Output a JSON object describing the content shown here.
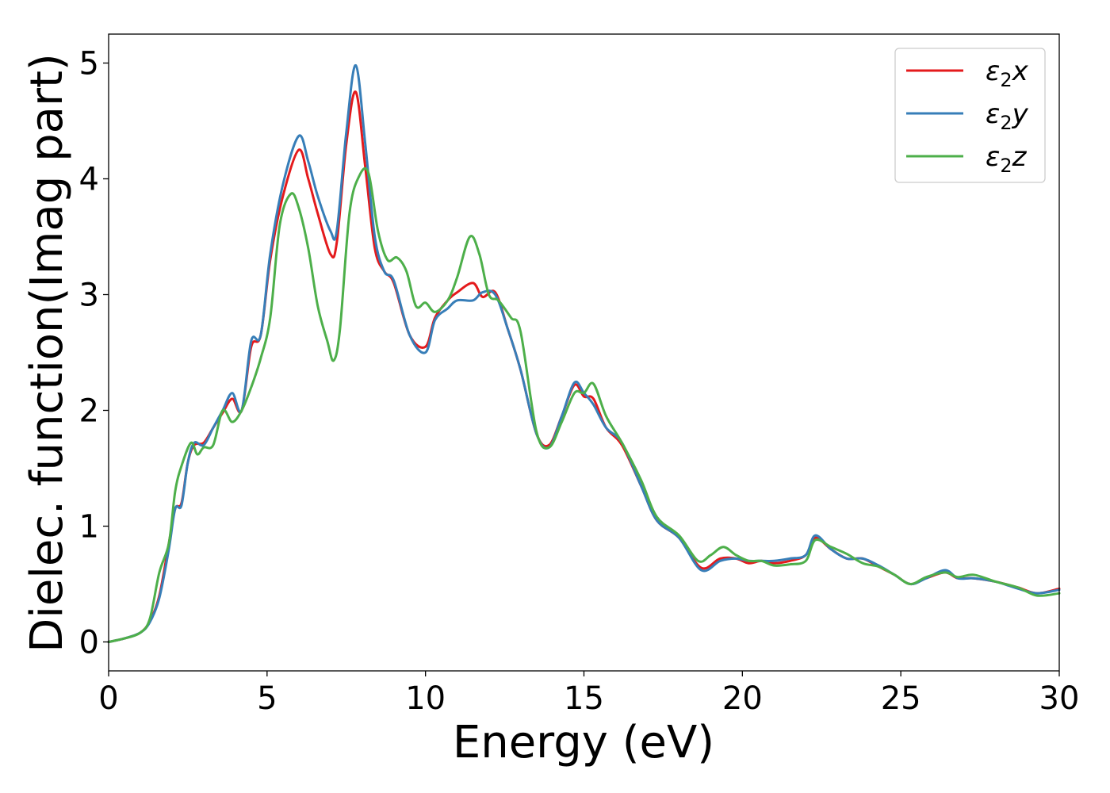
{
  "chart_data": {
    "type": "line",
    "xlabel": "Energy (eV)",
    "ylabel": "Dielec. function(Imag part)",
    "xlim": [
      0,
      30
    ],
    "ylim": [
      -0.25,
      5.25
    ],
    "xticks": [
      0,
      5,
      10,
      15,
      20,
      25,
      30
    ],
    "yticks": [
      0,
      1,
      2,
      3,
      4,
      5
    ],
    "grid": false,
    "legend": "top-right",
    "series": [
      {
        "name_base": "ε",
        "name_sub": "2",
        "name_suffix": "x",
        "color": "#e41a1c",
        "x": [
          0,
          0.5,
          1.0,
          1.3,
          1.6,
          1.9,
          2.1,
          2.3,
          2.5,
          2.7,
          3.0,
          3.3,
          3.6,
          3.9,
          4.2,
          4.5,
          4.8,
          5.1,
          5.5,
          6.0,
          6.3,
          6.6,
          7.0,
          7.2,
          7.5,
          7.8,
          8.1,
          8.4,
          8.7,
          9.0,
          9.5,
          10.0,
          10.3,
          10.7,
          11.0,
          11.5,
          11.8,
          12.2,
          12.6,
          13.0,
          13.5,
          13.9,
          14.3,
          14.7,
          15.0,
          15.3,
          15.7,
          16.2,
          16.8,
          17.3,
          18.0,
          18.7,
          19.3,
          19.8,
          20.2,
          20.6,
          21.0,
          21.5,
          22.0,
          22.3,
          22.8,
          23.3,
          23.8,
          24.3,
          24.8,
          25.3,
          25.8,
          26.4,
          26.8,
          27.3,
          28.0,
          28.7,
          29.3,
          30.0
        ],
        "y": [
          0.0,
          0.03,
          0.08,
          0.18,
          0.4,
          0.85,
          1.15,
          1.2,
          1.55,
          1.7,
          1.72,
          1.85,
          1.98,
          2.1,
          2.0,
          2.55,
          2.65,
          3.3,
          3.85,
          4.25,
          4.0,
          3.7,
          3.35,
          3.45,
          4.3,
          4.75,
          4.1,
          3.4,
          3.2,
          3.1,
          2.65,
          2.55,
          2.8,
          2.95,
          3.02,
          3.1,
          2.98,
          3.02,
          2.7,
          2.35,
          1.8,
          1.7,
          1.95,
          2.22,
          2.12,
          2.1,
          1.85,
          1.7,
          1.35,
          1.05,
          0.9,
          0.64,
          0.72,
          0.72,
          0.68,
          0.7,
          0.68,
          0.7,
          0.75,
          0.9,
          0.8,
          0.72,
          0.72,
          0.65,
          0.58,
          0.5,
          0.55,
          0.6,
          0.55,
          0.55,
          0.52,
          0.47,
          0.42,
          0.46
        ]
      },
      {
        "name_base": "ε",
        "name_sub": "2",
        "name_suffix": "y",
        "color": "#377eb8",
        "x": [
          0,
          0.5,
          1.0,
          1.3,
          1.6,
          1.9,
          2.1,
          2.3,
          2.5,
          2.7,
          3.0,
          3.3,
          3.6,
          3.9,
          4.2,
          4.5,
          4.8,
          5.1,
          5.5,
          6.0,
          6.3,
          6.6,
          7.0,
          7.2,
          7.5,
          7.8,
          8.1,
          8.4,
          8.7,
          9.0,
          9.5,
          10.0,
          10.3,
          10.7,
          11.0,
          11.5,
          11.8,
          12.2,
          12.6,
          13.0,
          13.5,
          13.9,
          14.3,
          14.7,
          15.0,
          15.3,
          15.7,
          16.2,
          16.8,
          17.3,
          18.0,
          18.7,
          19.3,
          19.8,
          20.2,
          20.6,
          21.0,
          21.5,
          22.0,
          22.3,
          22.8,
          23.3,
          23.8,
          24.3,
          24.8,
          25.3,
          25.8,
          26.4,
          26.8,
          27.3,
          28.0,
          28.7,
          29.3,
          30.0
        ],
        "y": [
          0.0,
          0.03,
          0.08,
          0.17,
          0.38,
          0.8,
          1.15,
          1.18,
          1.55,
          1.72,
          1.7,
          1.85,
          2.0,
          2.15,
          2.0,
          2.6,
          2.65,
          3.35,
          3.95,
          4.37,
          4.15,
          3.85,
          3.55,
          3.55,
          4.4,
          4.98,
          4.3,
          3.5,
          3.2,
          3.12,
          2.65,
          2.5,
          2.78,
          2.88,
          2.95,
          2.95,
          3.02,
          3.0,
          2.7,
          2.35,
          1.8,
          1.68,
          1.95,
          2.24,
          2.15,
          2.05,
          1.85,
          1.72,
          1.35,
          1.05,
          0.9,
          0.62,
          0.7,
          0.72,
          0.7,
          0.7,
          0.7,
          0.72,
          0.75,
          0.92,
          0.8,
          0.72,
          0.72,
          0.66,
          0.58,
          0.5,
          0.55,
          0.62,
          0.55,
          0.55,
          0.52,
          0.46,
          0.42,
          0.45
        ]
      },
      {
        "name_base": "ε",
        "name_sub": "2",
        "name_suffix": "z",
        "color": "#4daf4a",
        "x": [
          0,
          0.5,
          1.0,
          1.3,
          1.6,
          1.9,
          2.1,
          2.3,
          2.6,
          2.8,
          3.0,
          3.3,
          3.6,
          3.9,
          4.2,
          4.5,
          4.8,
          5.1,
          5.4,
          5.75,
          6.0,
          6.3,
          6.6,
          6.9,
          7.1,
          7.3,
          7.6,
          7.9,
          8.2,
          8.5,
          8.8,
          9.1,
          9.4,
          9.7,
          10.0,
          10.3,
          10.7,
          11.0,
          11.4,
          11.7,
          12.0,
          12.3,
          12.7,
          13.0,
          13.5,
          13.9,
          14.3,
          14.7,
          15.0,
          15.3,
          15.7,
          16.2,
          16.8,
          17.3,
          18.0,
          18.6,
          19.0,
          19.4,
          19.8,
          20.2,
          20.6,
          21.0,
          21.5,
          22.0,
          22.3,
          22.8,
          23.3,
          23.8,
          24.3,
          24.8,
          25.3,
          25.8,
          26.4,
          26.8,
          27.3,
          28.0,
          28.7,
          29.3,
          30.0
        ],
        "y": [
          0.0,
          0.03,
          0.08,
          0.2,
          0.6,
          0.85,
          1.3,
          1.52,
          1.72,
          1.62,
          1.68,
          1.7,
          2.0,
          1.9,
          2.0,
          2.2,
          2.45,
          2.8,
          3.6,
          3.87,
          3.75,
          3.4,
          2.9,
          2.6,
          2.43,
          2.7,
          3.7,
          4.02,
          4.05,
          3.55,
          3.3,
          3.32,
          3.2,
          2.9,
          2.93,
          2.85,
          2.95,
          3.15,
          3.5,
          3.35,
          3.0,
          2.95,
          2.8,
          2.68,
          1.82,
          1.68,
          1.9,
          2.15,
          2.15,
          2.23,
          1.95,
          1.72,
          1.4,
          1.08,
          0.92,
          0.7,
          0.75,
          0.82,
          0.75,
          0.7,
          0.7,
          0.66,
          0.67,
          0.7,
          0.88,
          0.82,
          0.76,
          0.68,
          0.65,
          0.58,
          0.5,
          0.56,
          0.6,
          0.56,
          0.58,
          0.52,
          0.47,
          0.4,
          0.42
        ]
      }
    ]
  }
}
